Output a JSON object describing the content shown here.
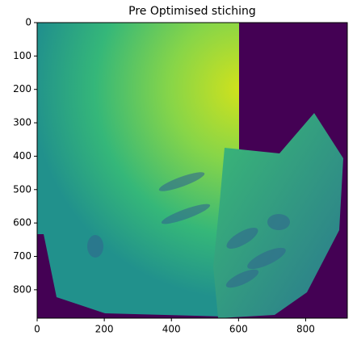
{
  "chart_data": {
    "type": "image",
    "title": "Pre Optimised stiching",
    "xlim": [
      0,
      924
    ],
    "ylim": [
      885,
      0
    ],
    "xticks": [
      0,
      200,
      400,
      600,
      800
    ],
    "yticks": [
      0,
      100,
      200,
      300,
      400,
      500,
      600,
      700,
      800
    ]
  }
}
